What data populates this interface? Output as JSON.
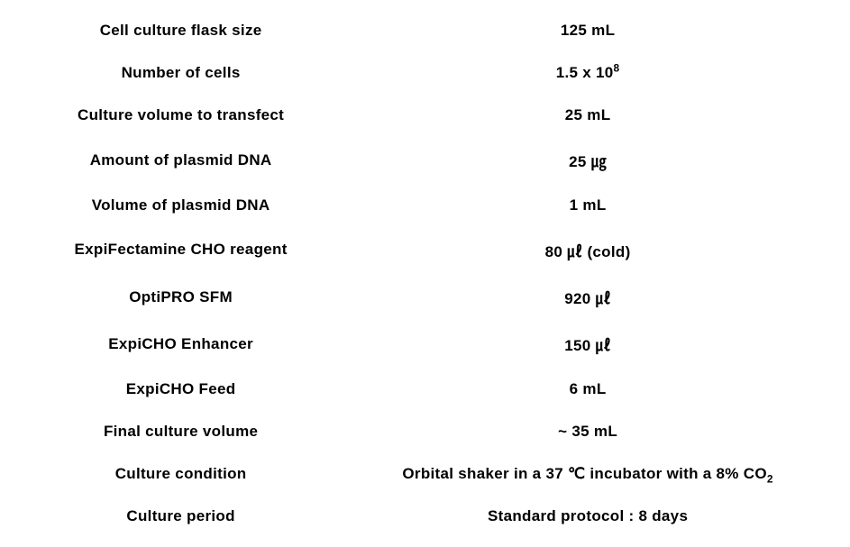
{
  "type": "table",
  "background_color": "#ffffff",
  "text_color": "#000000",
  "font_weight": 700,
  "font_size_pt": 13,
  "column_layout": {
    "label_width_pct": 40,
    "value_width_pct": 60,
    "label_align": "center",
    "value_align": "center"
  },
  "rows": [
    {
      "label": "Cell culture flask size",
      "value": "125 mL"
    },
    {
      "label": "Number of cells",
      "value": "1.5 x 10<sup>8</sup>"
    },
    {
      "label": "Culture volume to transfect",
      "value": "25 mL"
    },
    {
      "label": "Amount of plasmid DNA",
      "value": "25 ㎍"
    },
    {
      "label": "Volume of plasmid DNA",
      "value": "1 mL"
    },
    {
      "label": "ExpiFectamine CHO reagent",
      "value": "80 ㎕ (cold)"
    },
    {
      "label": "OptiPRO SFM",
      "value": "920 ㎕"
    },
    {
      "label": "ExpiCHO Enhancer",
      "value": "150 ㎕"
    },
    {
      "label": "ExpiCHO Feed",
      "value": "6 mL"
    },
    {
      "label": "Final culture volume",
      "value": "~ 35 mL"
    },
    {
      "label": "Culture condition",
      "value": "Orbital shaker in a 37 ℃ incubator with a 8% CO<sub>2</sub>"
    },
    {
      "label": "Culture period",
      "value": "Standard protocol : 8 days"
    }
  ]
}
